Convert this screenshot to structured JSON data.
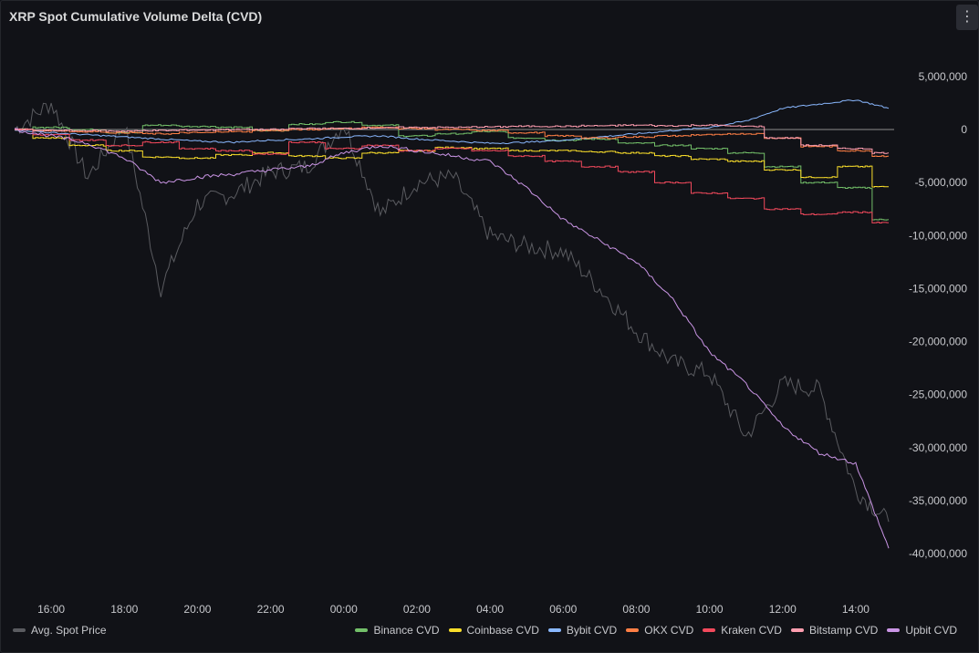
{
  "panel": {
    "title": "XRP Spot Cumulative Volume Delta (CVD)",
    "menu_icon": "⋮"
  },
  "chart_data": {
    "type": "line",
    "title": "XRP Spot Cumulative Volume Delta (CVD)",
    "x_tick_labels": [
      "16:00",
      "18:00",
      "20:00",
      "22:00",
      "00:00",
      "02:00",
      "04:00",
      "06:00",
      "08:00",
      "10:00",
      "12:00",
      "14:00"
    ],
    "x_range_hours": [
      -0.95,
      23.05
    ],
    "y_tick_labels": [
      "5,000,000",
      "0",
      "-5,000,000",
      "-10,000,000",
      "-15,000,000",
      "-20,000,000",
      "-25,000,000",
      "-30,000,000",
      "-35,000,000",
      "-40,000,000"
    ],
    "y_tick_values": [
      5000000,
      0,
      -5000000,
      -10000000,
      -15000000,
      -20000000,
      -25000000,
      -30000000,
      -35000000,
      -40000000
    ],
    "ylim": [
      -40000000,
      5000000
    ],
    "grid": false,
    "legend_placement": "bottom",
    "x_hours": [
      -1,
      0,
      1,
      2,
      3,
      4,
      5,
      6,
      7,
      8,
      9,
      10,
      11,
      12,
      13,
      14,
      15,
      16,
      17,
      18,
      19,
      20,
      21,
      22,
      22.9
    ],
    "series": [
      {
        "name": "Binance CVD",
        "color": "#73bf69",
        "step": true,
        "values": [
          0,
          200000,
          0,
          -300000,
          400000,
          300000,
          200000,
          -100000,
          500000,
          700000,
          400000,
          -600000,
          -400000,
          -200000,
          -800000,
          -1000000,
          -900000,
          -1300000,
          -1500000,
          -1800000,
          -2200000,
          -3500000,
          -5000000,
          -5500000,
          -8500000
        ]
      },
      {
        "name": "Coinbase CVD",
        "color": "#fade2a",
        "step": true,
        "values": [
          0,
          -800000,
          -1500000,
          -2000000,
          -2600000,
          -2700000,
          -2400000,
          -2200000,
          -2500000,
          -2700000,
          -2200000,
          -2000000,
          -1700000,
          -1800000,
          -2000000,
          -2000000,
          -2100000,
          -2200000,
          -2500000,
          -2800000,
          -3000000,
          -3800000,
          -4500000,
          -3500000,
          -5400000
        ]
      },
      {
        "name": "Bybit CVD",
        "color": "#8ab8ff",
        "values": [
          0,
          -300000,
          -500000,
          -700000,
          -900000,
          -1100000,
          -1200000,
          -1000000,
          -900000,
          -700000,
          -600000,
          -900000,
          -1100000,
          -1300000,
          -1200000,
          -1000000,
          -700000,
          -400000,
          -100000,
          200000,
          800000,
          2000000,
          2400000,
          2800000,
          2000000
        ]
      },
      {
        "name": "OKX CVD",
        "color": "#ff7f45",
        "step": true,
        "values": [
          0,
          -100000,
          -200000,
          -300000,
          -400000,
          -300000,
          -200000,
          -100000,
          0,
          100000,
          200000,
          100000,
          0,
          -100000,
          -300000,
          -600000,
          -800000,
          -700000,
          -600000,
          -500000,
          -400000,
          -800000,
          -1600000,
          -2000000,
          -2500000
        ]
      },
      {
        "name": "Kraken CVD",
        "color": "#f2495c",
        "step": true,
        "values": [
          0,
          -500000,
          -1000000,
          -1500000,
          -1200000,
          -1800000,
          -2000000,
          -2300000,
          -1200000,
          -1800000,
          -1500000,
          -2000000,
          -1800000,
          -2000000,
          -2500000,
          -3000000,
          -3500000,
          -4000000,
          -5000000,
          -6000000,
          -6500000,
          -7500000,
          -8000000,
          -7800000,
          -8800000
        ]
      },
      {
        "name": "Bitstamp CVD",
        "color": "#ff9eb0",
        "step": true,
        "values": [
          0,
          -100000,
          -100000,
          -150000,
          -100000,
          -50000,
          0,
          0,
          100000,
          100000,
          150000,
          200000,
          200000,
          250000,
          300000,
          300000,
          350000,
          400000,
          350000,
          400000,
          300000,
          -800000,
          -1500000,
          -1800000,
          -2200000
        ]
      },
      {
        "name": "Upbit CVD",
        "color": "#ca95e5",
        "values": [
          0,
          -600000,
          -1300000,
          -2700000,
          -5000000,
          -4500000,
          -4200000,
          -3800000,
          -3500000,
          -2200000,
          -1500000,
          -2000000,
          -2500000,
          -3000000,
          -5500000,
          -8500000,
          -10500000,
          -12500000,
          -16000000,
          -21000000,
          -24000000,
          -28000000,
          -30500000,
          -31500000,
          -39500000
        ]
      }
    ],
    "price_series": {
      "name": "Avg. Spot Price",
      "color": "#5a5b60",
      "values": [
        0,
        2500000,
        -4500000,
        500000,
        -15000000,
        -7000000,
        -6000000,
        -4000000,
        -3500000,
        500000,
        -8000000,
        -5000000,
        -4500000,
        -10000000,
        -11000000,
        -11500000,
        -15000000,
        -19000000,
        -22000000,
        -23000000,
        -29000000,
        -24000000,
        -24500000,
        -34000000,
        -37000000
      ]
    }
  },
  "legend": {
    "price": {
      "label": "Avg. Spot Price",
      "color": "#5a5b60"
    },
    "items": [
      {
        "label": "Binance CVD",
        "color": "#73bf69"
      },
      {
        "label": "Coinbase CVD",
        "color": "#fade2a"
      },
      {
        "label": "Bybit CVD",
        "color": "#8ab8ff"
      },
      {
        "label": "OKX CVD",
        "color": "#ff7f45"
      },
      {
        "label": "Kraken CVD",
        "color": "#f2495c"
      },
      {
        "label": "Bitstamp CVD",
        "color": "#ff9eb0"
      },
      {
        "label": "Upbit CVD",
        "color": "#ca95e5"
      }
    ]
  }
}
